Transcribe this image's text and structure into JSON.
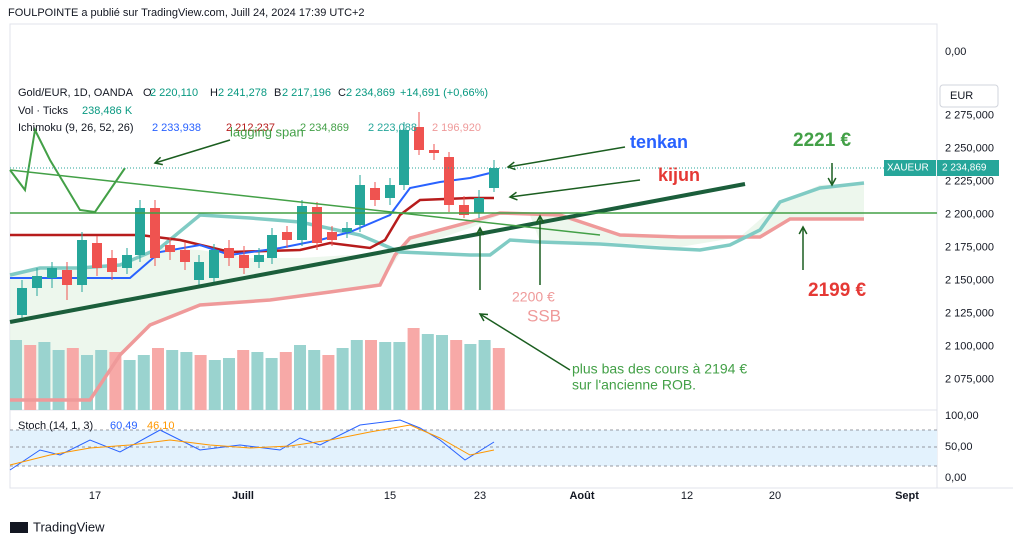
{
  "header": {
    "title": "FOULPOINTE a publié sur TradingView.com, Juill 24, 2024 17:39 UTC+2"
  },
  "legend": {
    "symbol": "Gold/EUR, 1D, OANDA",
    "open_label": "O",
    "open": "2 220,110",
    "high_label": "H",
    "high": "2 241,278",
    "low_label": "B",
    "low": "2 217,196",
    "close_label": "C",
    "close": "2 234,869",
    "change": "+14,691 (+0,66%)",
    "volume": "Vol · Ticks",
    "volume_value": "238,486 K",
    "ichimoku": "Ichimoku (9, 26, 52, 26)",
    "ichimoku_values": [
      "2 233,938",
      "2 212,237",
      "2 234,869",
      "2 223,088",
      "2 196,920"
    ]
  },
  "price_axis": {
    "currency": "EUR",
    "volume_zero": "0,00",
    "labels": [
      "2 275,000",
      "2 250,000",
      "2 225,000",
      "2 200,000",
      "2 175,000",
      "2 150,000",
      "2 125,000",
      "2 100,000",
      "2 075,000"
    ],
    "tag_symbol": "XAUEUR",
    "tag_price": "2 234,869"
  },
  "stoch": {
    "label": "Stoch (14, 1, 3)",
    "k": "60,49",
    "d": "46,10",
    "axis": [
      "100,00",
      "50,00",
      "0,00"
    ]
  },
  "time_axis": [
    "17",
    "Juill",
    "15",
    "23",
    "Août",
    "12",
    "20",
    "Sept"
  ],
  "annotations": {
    "lagging": "lagging span",
    "tenkan": "tenkan",
    "kijun": "kijun",
    "target": "2221 €",
    "ssb_right": "2199 €",
    "ssb_value": "2200 €",
    "ssb": "SSB",
    "low_line1": "plus bas des cours à 2194 €",
    "low_line2": "sur l'ancienne ROB."
  },
  "footer": {
    "brand": "TradingView"
  }
}
